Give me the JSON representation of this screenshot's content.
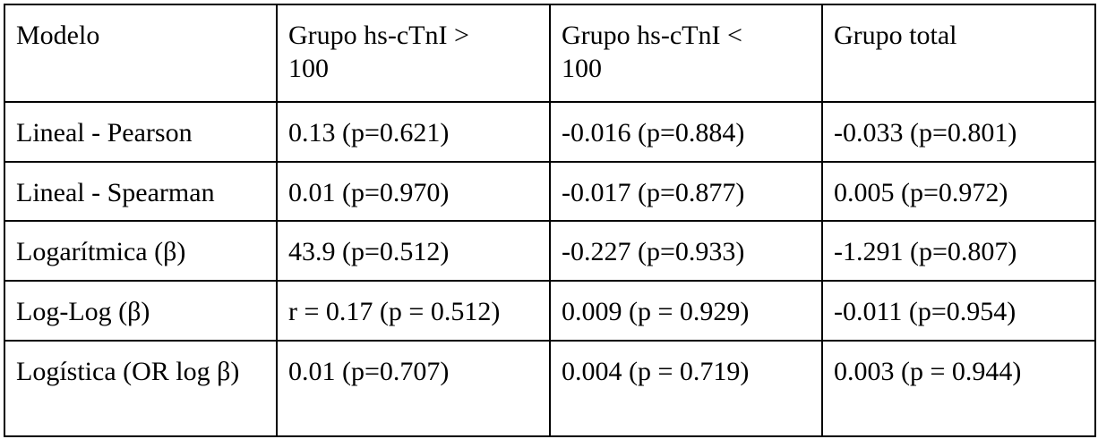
{
  "table": {
    "header": [
      "Modelo",
      "Grupo hs-cTnI > 100",
      "Grupo hs-cTnI < 100",
      "Grupo total"
    ],
    "rows": [
      [
        "Lineal - Pearson",
        "0.13 (p=0.621)",
        "-0.016 (p=0.884)",
        "-0.033 (p=0.801)"
      ],
      [
        "Lineal - Spearman",
        "0.01 (p=0.970)",
        "-0.017 (p=0.877)",
        "0.005 (p=0.972)"
      ],
      [
        "Logarítmica (β)",
        "43.9 (p=0.512)",
        "-0.227 (p=0.933)",
        "-1.291 (p=0.807)"
      ],
      [
        "Log-Log (β)",
        "r = 0.17 (p = 0.512)",
        "0.009 (p = 0.929)",
        "-0.011 (p=0.954)"
      ],
      [
        "Logística (OR log β)",
        "0.01 (p=0.707)",
        "0.004 (p = 0.719)",
        "0.003 (p = 0.944)"
      ]
    ]
  }
}
